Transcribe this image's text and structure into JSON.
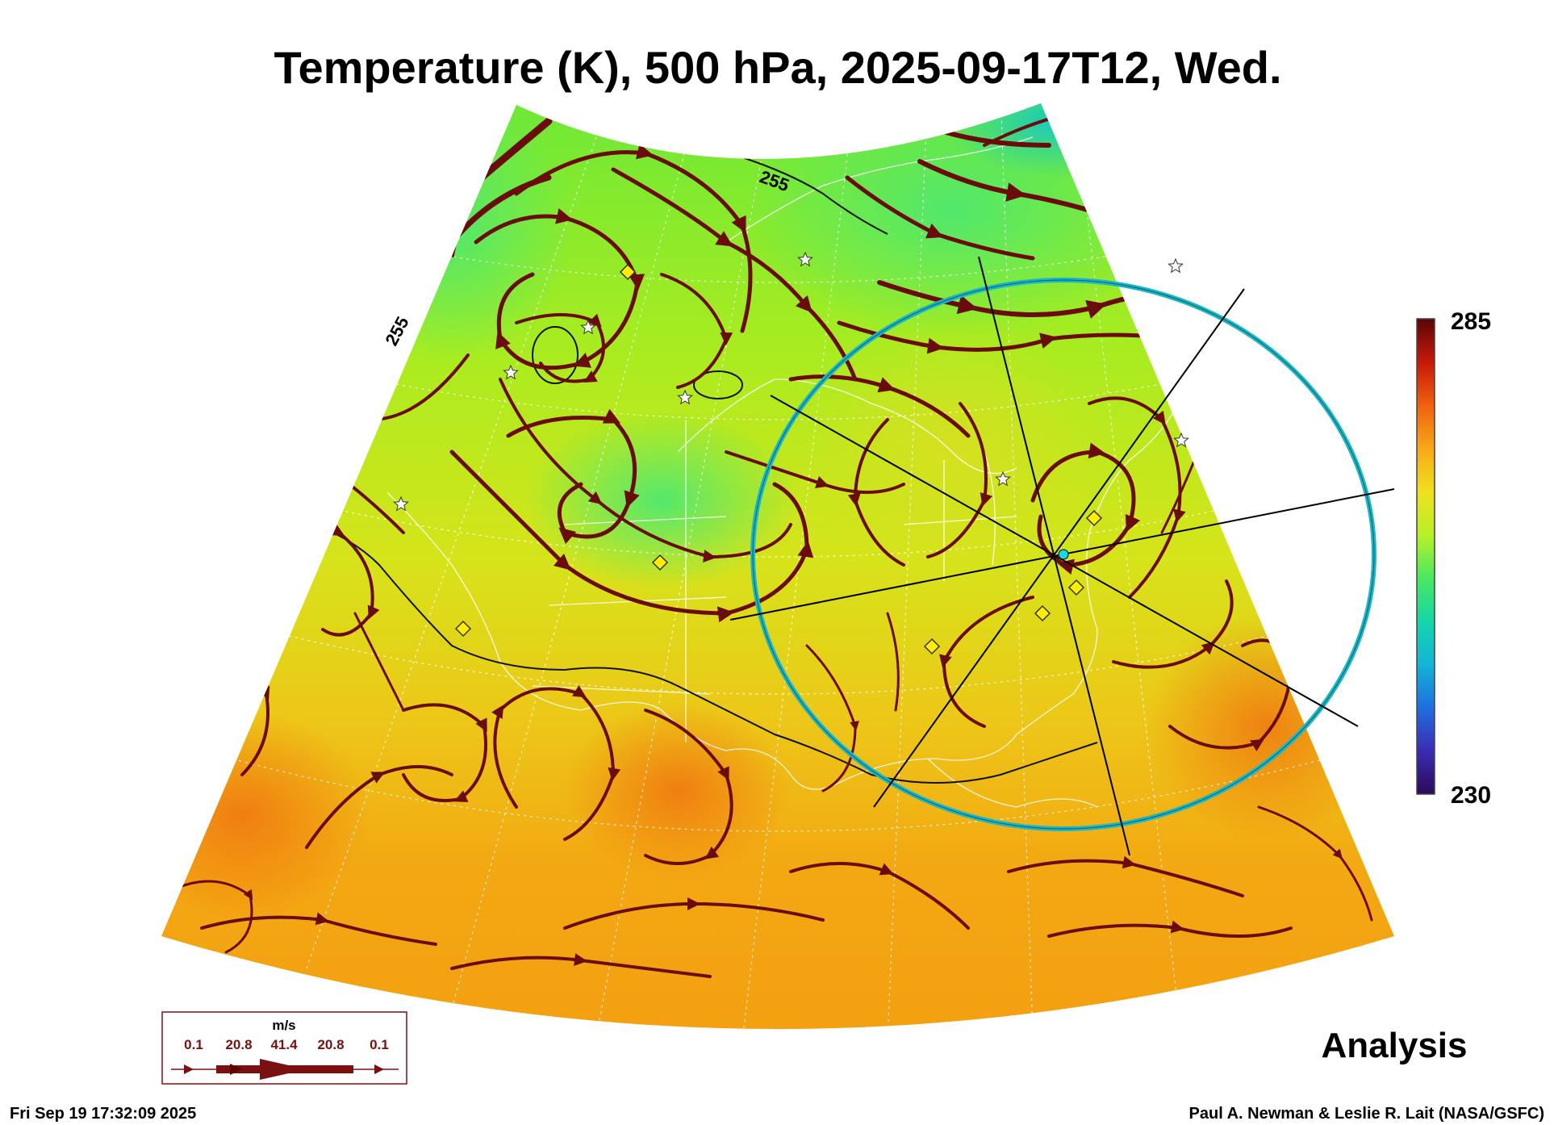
{
  "title": "Temperature (K), 500 hPa, 2025-09-17T12, Wed.",
  "colorbar": {
    "max_label": "285",
    "min_label": "230",
    "max": 285,
    "min": 230,
    "stops": [
      "#2a0a5a",
      "#3b2cb4",
      "#1f6fe0",
      "#12b4d8",
      "#16d6a8",
      "#4ae860",
      "#b8f028",
      "#f0e020",
      "#f8a818",
      "#f06010",
      "#c81808",
      "#5a0606"
    ]
  },
  "contours": [
    {
      "label": "255"
    },
    {
      "label": "255"
    }
  ],
  "wind_legend": {
    "unit": "m/s",
    "values": [
      "0.1",
      "20.8",
      "41.4",
      "20.8",
      "0.1"
    ]
  },
  "analysis_label": "Analysis",
  "footer": {
    "timestamp": "Fri Sep 19 17:32:09 2025",
    "credit": "Paul A. Newman & Leslie R. Lait (NASA/GSFC)"
  },
  "colors": {
    "streamline": "#6a0c0c",
    "cyan_ring": "#19b8c8",
    "marker_fill": "#ffee00",
    "cold_field": "#4ee85a",
    "warm_field": "#f59a10"
  },
  "markers": {
    "diamonds": 7,
    "stars": 8
  }
}
